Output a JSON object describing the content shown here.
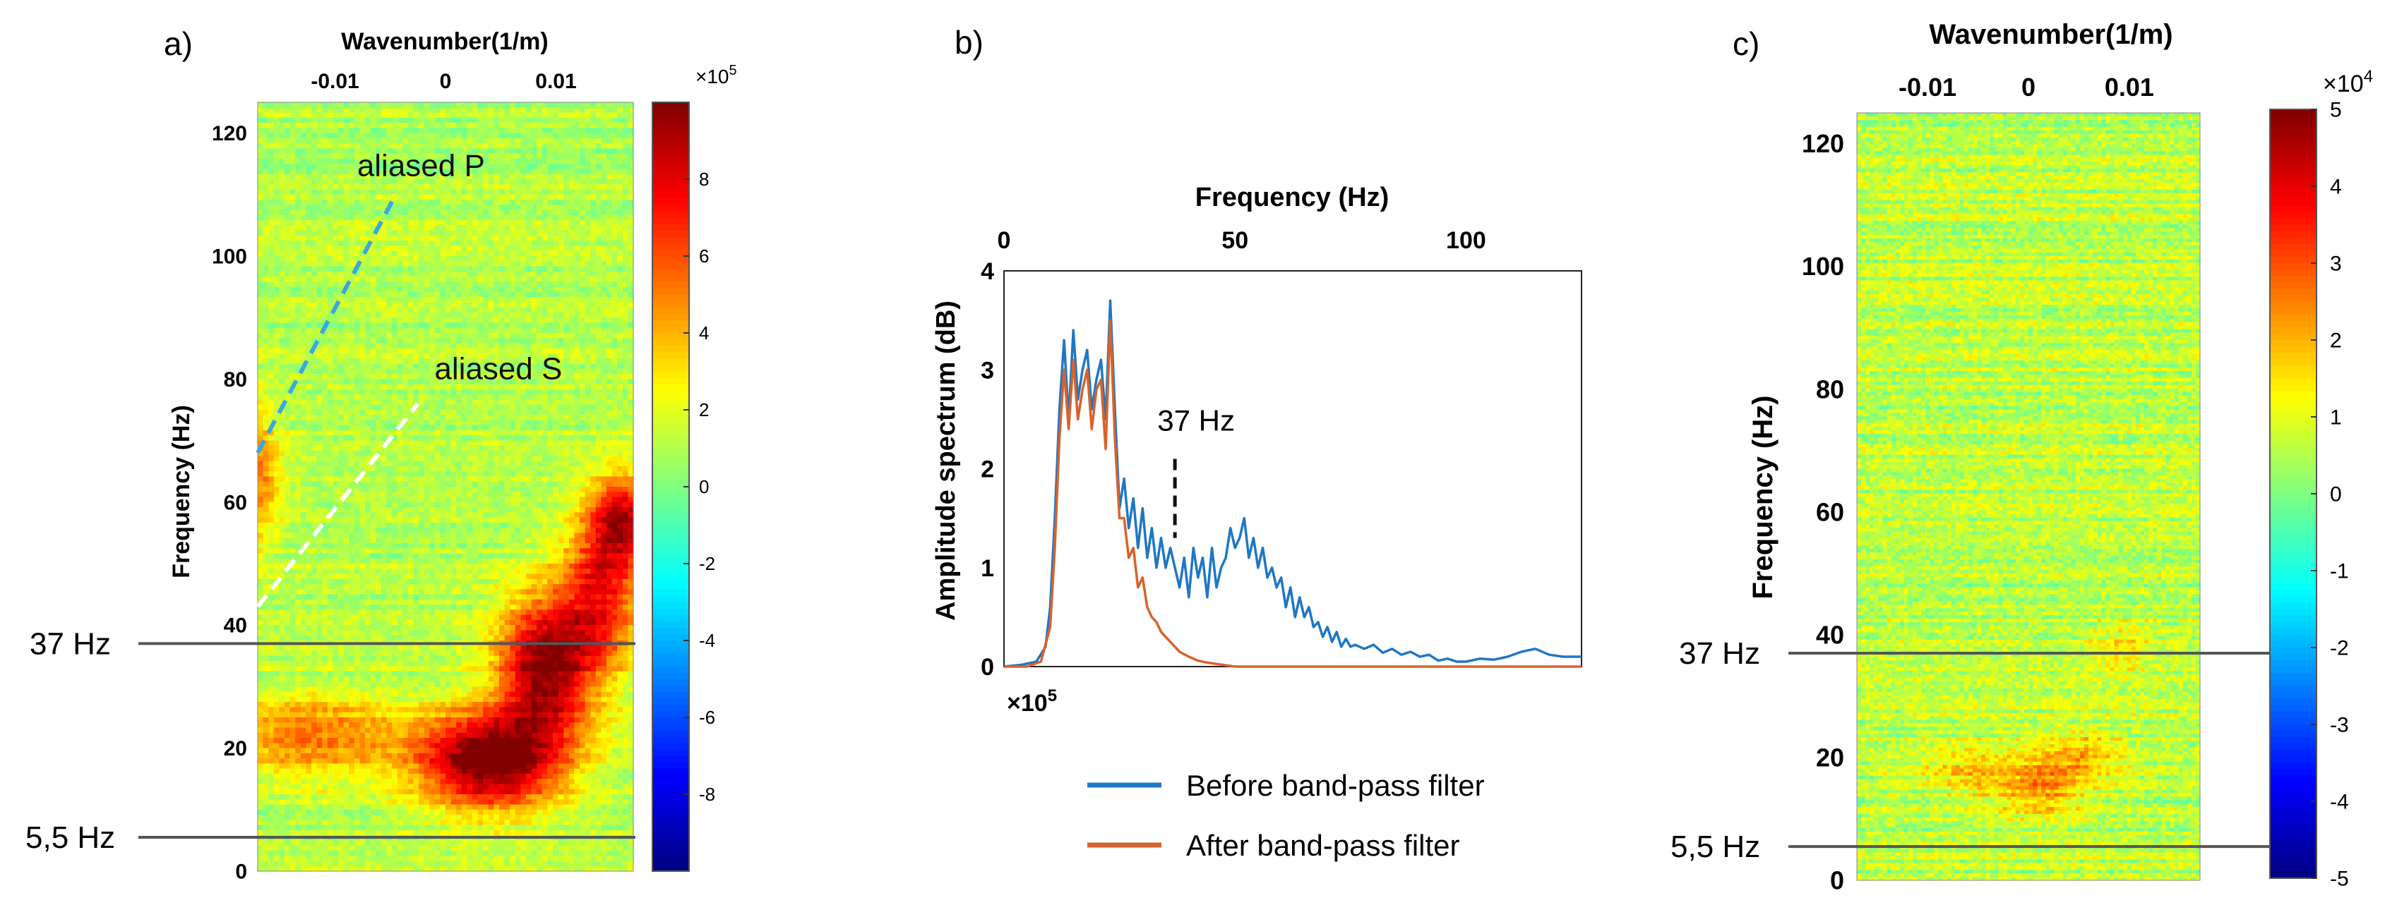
{
  "colors": {
    "background": "#ffffff",
    "before_line": "#1f77c4",
    "after_line": "#d9622b",
    "marker_line": "#555555",
    "dash_p": "#3aa7e0",
    "dash_s": "#ffffff"
  },
  "panel_labels": {
    "a": "a)",
    "b": "b)",
    "c": "c)"
  },
  "markers": {
    "f37": "37 Hz",
    "f55": "5,5 Hz",
    "f37_value": 37,
    "f55_value": 5.5
  },
  "chart_data": [
    {
      "type": "heatmap",
      "panel": "a)",
      "title": "",
      "xlabel": "Wavenumber(1/m)",
      "ylabel": "Frequency (Hz)",
      "xlim": [
        -0.017,
        0.017
      ],
      "ylim": [
        0,
        125
      ],
      "x_ticks": [
        -0.01,
        0,
        0.01
      ],
      "x_tick_labels": [
        "-0.01",
        "0",
        "0.01"
      ],
      "y_ticks": [
        0,
        20,
        40,
        60,
        80,
        100,
        120
      ],
      "y_tick_labels": [
        "0",
        "20",
        "40",
        "60",
        "80",
        "100",
        "120"
      ],
      "colorbar": {
        "range": [
          -10,
          10
        ],
        "ticks": [
          8,
          6,
          4,
          2,
          0,
          -2,
          -4,
          -6,
          -8
        ],
        "tick_labels": [
          "8",
          "6",
          "4",
          "2",
          "0",
          "-2",
          "-4",
          "-6",
          "-8"
        ],
        "exponent": "×10",
        "exponent_power": "5"
      },
      "annotations": [
        {
          "text": "aliased P",
          "x": -0.008,
          "y": 113
        },
        {
          "text": "aliased S",
          "x": -0.001,
          "y": 80
        }
      ],
      "dashed_lines": [
        {
          "name": "aliased P",
          "points": [
            [
              -0.017,
              68
            ],
            [
              -0.0045,
              110
            ]
          ]
        },
        {
          "name": "aliased S",
          "points": [
            [
              -0.017,
              43
            ],
            [
              -0.0025,
              76
            ]
          ]
        }
      ],
      "energy_blobs": [
        {
          "kx": 0.004,
          "f": 18,
          "sx": 0.0045,
          "sf": 5.5,
          "amp": 10
        },
        {
          "kx": 0.009,
          "f": 33,
          "sx": 0.003,
          "sf": 8,
          "amp": 9
        },
        {
          "kx": 0.014,
          "f": 45,
          "sx": 0.0025,
          "sf": 9,
          "amp": 6
        },
        {
          "kx": 0.016,
          "f": 57,
          "sx": 0.002,
          "sf": 5,
          "amp": 7
        },
        {
          "kx": -0.012,
          "f": 22,
          "sx": 0.006,
          "sf": 5,
          "amp": 4
        },
        {
          "kx": -0.017,
          "f": 64,
          "sx": 0.0015,
          "sf": 8,
          "amp": 4
        }
      ]
    },
    {
      "type": "line",
      "panel": "b)",
      "title": "",
      "xlabel": "Frequency (Hz)",
      "ylabel": "Amplitude spectrum (dB)",
      "xlim": [
        0,
        125
      ],
      "ylim": [
        0,
        4
      ],
      "x_ticks": [
        0,
        50,
        100
      ],
      "x_tick_labels": [
        "0",
        "50",
        "100"
      ],
      "y_ticks": [
        0,
        1,
        2,
        3,
        4
      ],
      "y_tick_labels": [
        "0",
        "1",
        "2",
        "3",
        "4"
      ],
      "y_exponent": "×10",
      "y_exponent_power": "5",
      "annotation": {
        "text": "37 Hz",
        "x": 37,
        "y_from": 1.3,
        "y_to": 2.1
      },
      "legend": {
        "placement": "below"
      },
      "series": [
        {
          "name": "Before band-pass filter",
          "x": [
            0,
            4,
            7,
            9,
            10,
            11,
            12,
            13,
            14,
            15,
            16,
            17,
            18,
            19,
            20,
            21,
            22,
            23,
            24,
            25,
            26,
            27,
            28,
            29,
            30,
            31,
            32,
            33,
            34,
            35,
            36,
            37,
            38,
            39,
            40,
            41,
            42,
            43,
            44,
            45,
            46,
            47,
            48,
            49,
            50,
            51,
            52,
            53,
            54,
            55,
            56,
            57,
            58,
            59,
            60,
            61,
            62,
            63,
            64,
            65,
            66,
            67,
            68,
            69,
            70,
            71,
            72,
            73,
            74,
            75,
            76,
            78,
            80,
            82,
            84,
            86,
            88,
            90,
            92,
            94,
            96,
            98,
            100,
            103,
            106,
            109,
            112,
            115,
            118,
            121,
            125
          ],
          "values": [
            0,
            0.02,
            0.05,
            0.2,
            0.6,
            1.5,
            2.6,
            3.3,
            2.5,
            3.4,
            2.7,
            3.0,
            3.2,
            2.6,
            2.9,
            3.1,
            2.5,
            3.7,
            2.6,
            1.6,
            1.9,
            1.4,
            1.7,
            1.2,
            1.6,
            1.1,
            1.4,
            1.0,
            1.3,
            1.0,
            1.2,
            1.0,
            0.8,
            1.1,
            0.7,
            1.2,
            0.9,
            1.1,
            0.7,
            1.2,
            0.8,
            1.0,
            1.1,
            1.4,
            1.2,
            1.3,
            1.5,
            1.1,
            1.3,
            1.0,
            1.2,
            0.9,
            1.0,
            0.8,
            0.9,
            0.6,
            0.8,
            0.5,
            0.7,
            0.5,
            0.6,
            0.4,
            0.45,
            0.3,
            0.4,
            0.25,
            0.35,
            0.2,
            0.28,
            0.2,
            0.22,
            0.18,
            0.22,
            0.14,
            0.18,
            0.12,
            0.15,
            0.1,
            0.12,
            0.06,
            0.08,
            0.05,
            0.05,
            0.08,
            0.07,
            0.1,
            0.15,
            0.18,
            0.12,
            0.1,
            0.1
          ]
        },
        {
          "name": "After band-pass filter",
          "x": [
            0,
            5,
            8,
            10,
            11,
            12,
            13,
            14,
            15,
            16,
            17,
            18,
            19,
            20,
            21,
            22,
            23,
            24,
            25,
            26,
            27,
            28,
            29,
            30,
            31,
            32,
            33,
            34,
            35,
            36,
            37,
            38,
            40,
            42,
            44,
            47,
            50,
            125
          ],
          "values": [
            0,
            0,
            0.05,
            0.4,
            1.2,
            2.3,
            3.0,
            2.4,
            3.1,
            2.5,
            2.8,
            3.0,
            2.4,
            2.8,
            2.9,
            2.2,
            3.5,
            2.3,
            1.5,
            1.5,
            1.1,
            1.2,
            0.8,
            0.9,
            0.6,
            0.5,
            0.45,
            0.35,
            0.3,
            0.25,
            0.2,
            0.15,
            0.1,
            0.06,
            0.04,
            0.02,
            0,
            0
          ]
        }
      ]
    },
    {
      "type": "heatmap",
      "panel": "c)",
      "title": "",
      "xlabel": "Wavenumber(1/m)",
      "ylabel": "Frequency (Hz)",
      "xlim": [
        -0.017,
        0.017
      ],
      "ylim": [
        0,
        125
      ],
      "x_ticks": [
        -0.01,
        0,
        0.01
      ],
      "x_tick_labels": [
        "-0.01",
        "0",
        "0.01"
      ],
      "y_ticks": [
        0,
        20,
        40,
        60,
        80,
        100,
        120
      ],
      "y_tick_labels": [
        "0",
        "20",
        "40",
        "60",
        "80",
        "100",
        "120"
      ],
      "colorbar": {
        "range": [
          -5,
          5
        ],
        "ticks": [
          5,
          4,
          3,
          2,
          1,
          0,
          -1,
          -2,
          -3,
          -4,
          -5
        ],
        "tick_labels": [
          "5",
          "4",
          "3",
          "2",
          "1",
          "0",
          "-1",
          "-2",
          "-3",
          "-4",
          "-5"
        ],
        "exponent": "×10",
        "exponent_power": "4"
      },
      "energy_blobs": [
        {
          "kx": 0.001,
          "f": 15,
          "sx": 0.003,
          "sf": 3.5,
          "amp": 1.6
        },
        {
          "kx": 0.005,
          "f": 20,
          "sx": 0.003,
          "sf": 3,
          "amp": 1.3
        },
        {
          "kx": -0.006,
          "f": 18,
          "sx": 0.003,
          "sf": 3,
          "amp": 1.1
        },
        {
          "kx": 0.009,
          "f": 38,
          "sx": 0.002,
          "sf": 3,
          "amp": 0.8
        }
      ]
    }
  ]
}
